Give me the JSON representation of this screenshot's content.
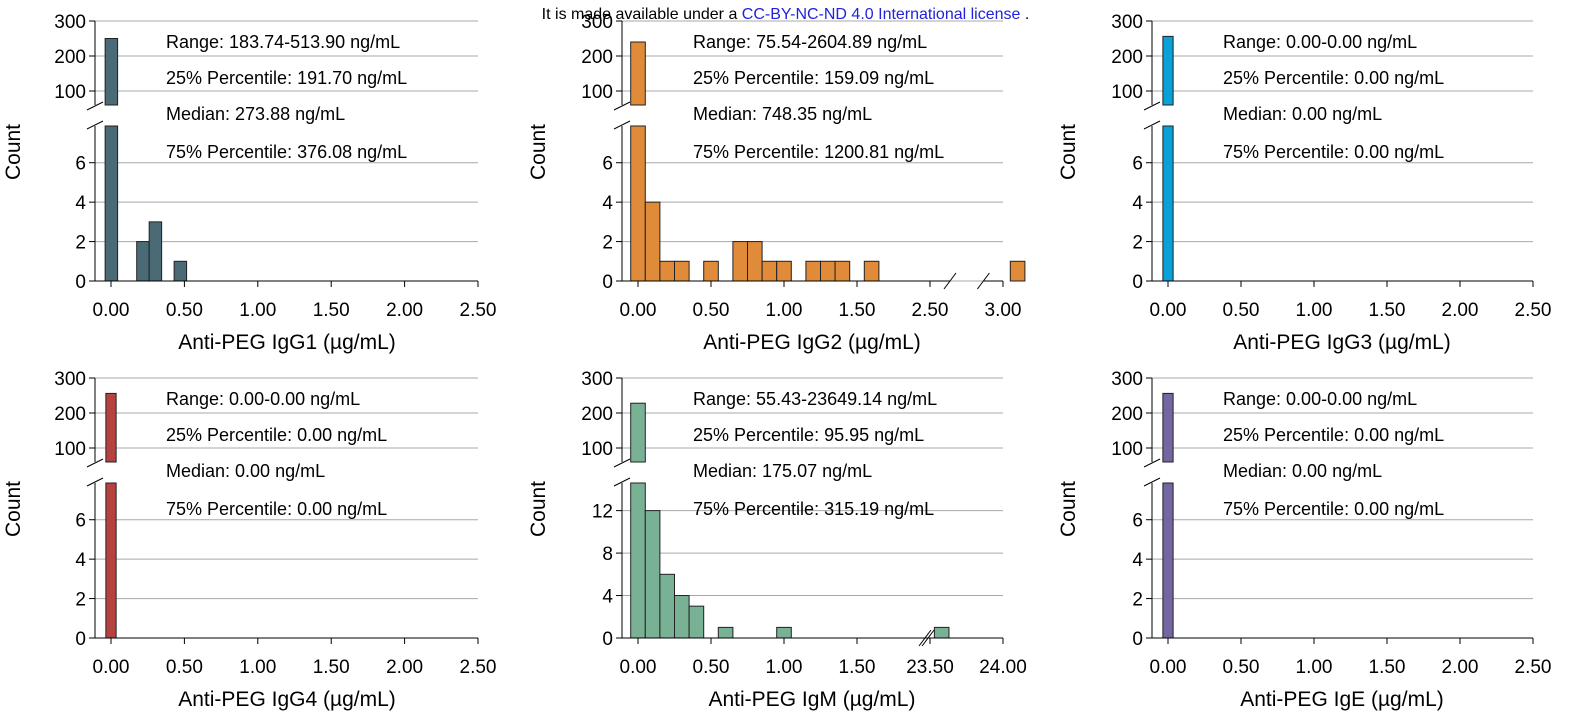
{
  "banner": {
    "prefix": "It is made available under a ",
    "license": "CC-BY-NC-ND 4.0 International license",
    "suffix": " ."
  },
  "chart_data": [
    {
      "type": "bar",
      "color": "#4a6b75",
      "xlabel": "Anti-PEG IgG1 (µg/mL)",
      "ylabel": "Count",
      "x_ticks": [
        "0.00",
        "0.50",
        "1.00",
        "1.50",
        "2.00",
        "2.50"
      ],
      "xlim": [
        -0.05,
        2.5
      ],
      "bin_width": 0.085,
      "bin_starts": [
        -0.04,
        0.175,
        0.26,
        0.43
      ],
      "values": [
        250,
        2,
        3,
        1
      ],
      "y_lower_ticks": [
        "0",
        "2",
        "4",
        "6"
      ],
      "y_lower_range": [
        0,
        7
      ],
      "y_upper_ticks": [
        "100",
        "200",
        "300"
      ],
      "y_upper_range": [
        60,
        300
      ],
      "annotations": [
        "Range: 183.74-513.90 ng/mL",
        "25% Percentile: 191.70 ng/mL",
        "Median: 273.88 ng/mL",
        "75% Percentile: 376.08 ng/mL"
      ]
    },
    {
      "type": "bar",
      "color": "#e08b3a",
      "xlabel": "Anti-PEG IgG2 (µg/mL)",
      "ylabel": "Count",
      "x_ticks": [
        "0.00",
        "0.50",
        "1.00",
        "1.50",
        "2.50",
        "3.00"
      ],
      "xlim": [
        -0.05,
        3.0
      ],
      "x_break": [
        2.0,
        2.4
      ],
      "bin_width": 0.1,
      "bin_starts": [
        -0.05,
        0.05,
        0.15,
        0.25,
        0.45,
        0.65,
        0.75,
        0.85,
        0.95,
        1.15,
        1.25,
        1.35,
        1.55,
        2.55
      ],
      "values": [
        240,
        4,
        1,
        1,
        1,
        2,
        2,
        1,
        1,
        1,
        1,
        1,
        1,
        1
      ],
      "y_lower_ticks": [
        "0",
        "2",
        "4",
        "6"
      ],
      "y_lower_range": [
        0,
        7
      ],
      "y_upper_ticks": [
        "100",
        "200",
        "300"
      ],
      "y_upper_range": [
        60,
        300
      ],
      "annotations": [
        "Range: 75.54-2604.89 ng/mL",
        "25% Percentile: 159.09 ng/mL",
        "Median: 748.35 ng/mL",
        "75% Percentile: 1200.81 ng/mL"
      ]
    },
    {
      "type": "bar",
      "color": "#0aa1d8",
      "xlabel": "Anti-PEG IgG3 (µg/mL)",
      "ylabel": "Count",
      "x_ticks": [
        "0.00",
        "0.50",
        "1.00",
        "1.50",
        "2.00",
        "2.50"
      ],
      "xlim": [
        -0.05,
        2.5
      ],
      "bin_width": 0.07,
      "bin_starts": [
        -0.035
      ],
      "values": [
        256
      ],
      "y_lower_ticks": [
        "0",
        "2",
        "4",
        "6"
      ],
      "y_lower_range": [
        0,
        7
      ],
      "y_upper_ticks": [
        "100",
        "200",
        "300"
      ],
      "y_upper_range": [
        60,
        300
      ],
      "annotations": [
        "Range: 0.00-0.00 ng/mL",
        "25% Percentile: 0.00 ng/mL",
        "Median: 0.00 ng/mL",
        "75% Percentile: 0.00 ng/mL"
      ]
    },
    {
      "type": "bar",
      "color": "#b5423f",
      "xlabel": "Anti-PEG IgG4 (µg/mL)",
      "ylabel": "Count",
      "x_ticks": [
        "0.00",
        "0.50",
        "1.00",
        "1.50",
        "2.00",
        "2.50"
      ],
      "xlim": [
        -0.05,
        2.5
      ],
      "bin_width": 0.07,
      "bin_starts": [
        -0.035
      ],
      "values": [
        256
      ],
      "y_lower_ticks": [
        "0",
        "2",
        "4",
        "6"
      ],
      "y_lower_range": [
        0,
        7
      ],
      "y_upper_ticks": [
        "100",
        "200",
        "300"
      ],
      "y_upper_range": [
        60,
        300
      ],
      "annotations": [
        "Range: 0.00-0.00 ng/mL",
        "25% Percentile: 0.00 ng/mL",
        "Median: 0.00 ng/mL",
        "75% Percentile: 0.00 ng/mL"
      ]
    },
    {
      "type": "bar",
      "color": "#79b195",
      "xlabel": "Anti-PEG IgM (µg/mL)",
      "ylabel": "Count",
      "x_ticks": [
        "0.00",
        "0.50",
        "1.00",
        "1.50",
        "23.50",
        "24.00"
      ],
      "xlim": [
        -0.05,
        2.4
      ],
      "x_break": [
        1.85,
        2.0
      ],
      "bin_width": 0.1,
      "bin_starts": [
        -0.05,
        0.05,
        0.15,
        0.25,
        0.35,
        0.55,
        0.95,
        2.03
      ],
      "values": [
        228,
        12,
        6,
        4,
        3,
        1,
        1,
        1
      ],
      "y_lower_ticks": [
        "0",
        "4",
        "8",
        "12"
      ],
      "y_lower_range": [
        0,
        13
      ],
      "y_upper_ticks": [
        "100",
        "200",
        "300"
      ],
      "y_upper_range": [
        60,
        300
      ],
      "annotations": [
        "Range: 55.43-23649.14 ng/mL",
        "25% Percentile: 95.95 ng/mL",
        "Median: 175.07 ng/mL",
        "75% Percentile: 315.19 ng/mL"
      ]
    },
    {
      "type": "bar",
      "color": "#7466a3",
      "xlabel": "Anti-PEG IgE (µg/mL)",
      "ylabel": "Count",
      "x_ticks": [
        "0.00",
        "0.50",
        "1.00",
        "1.50",
        "2.00",
        "2.50"
      ],
      "xlim": [
        -0.05,
        2.5
      ],
      "bin_width": 0.07,
      "bin_starts": [
        -0.035
      ],
      "values": [
        256
      ],
      "y_lower_ticks": [
        "0",
        "2",
        "4",
        "6"
      ],
      "y_lower_range": [
        0,
        7
      ],
      "y_upper_ticks": [
        "100",
        "200",
        "300"
      ],
      "y_upper_range": [
        60,
        300
      ],
      "annotations": [
        "Range: 0.00-0.00 ng/mL",
        "25% Percentile: 0.00 ng/mL",
        "Median: 0.00 ng/mL",
        "75% Percentile: 0.00 ng/mL"
      ]
    }
  ]
}
